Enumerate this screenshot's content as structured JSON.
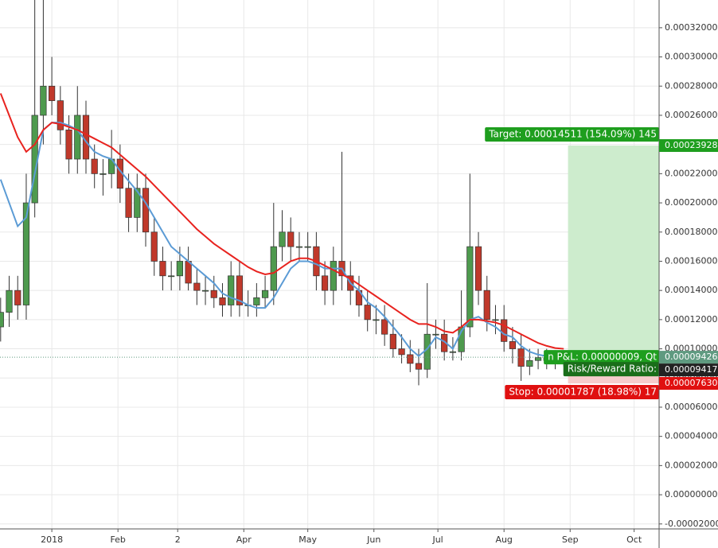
{
  "chart_data": {
    "type": "candlestick",
    "x": [
      -24,
      -20,
      -16,
      -12,
      -8,
      -4,
      0,
      4,
      8,
      12,
      16,
      20,
      24,
      28,
      32,
      36,
      40,
      44,
      48,
      52,
      56,
      60,
      64,
      68,
      72,
      76,
      80,
      84,
      88,
      92,
      96,
      100,
      104,
      108,
      112,
      116,
      120,
      124,
      128,
      132,
      136,
      140,
      144,
      148,
      152,
      156,
      160,
      164,
      168,
      172,
      176,
      180,
      184,
      188,
      192,
      196,
      200,
      204,
      208,
      212,
      216,
      220,
      224,
      228,
      232,
      236,
      240
    ],
    "open": [
      0.000115,
      0.000125,
      0.00014,
      0.00013,
      0.0002,
      0.00026,
      0.00028,
      0.00027,
      0.00025,
      0.00023,
      0.00026,
      0.00023,
      0.00022,
      0.00022,
      0.00023,
      0.00021,
      0.00019,
      0.00021,
      0.00018,
      0.00016,
      0.00015,
      0.00015,
      0.00016,
      0.000145,
      0.00014,
      0.00014,
      0.000135,
      0.00013,
      0.00015,
      0.00013,
      0.00013,
      0.000135,
      0.00014,
      0.00017,
      0.00018,
      0.00017,
      0.00017,
      0.00017,
      0.00015,
      0.00014,
      0.00016,
      0.00015,
      0.00014,
      0.00013,
      0.00012,
      0.00012,
      0.00011,
      0.0001,
      9.6e-05,
      9e-05,
      8.6e-05,
      0.00011,
      0.00011,
      9.8e-05,
      9.8e-05,
      0.000115,
      0.00017,
      0.00014,
      0.00012,
      0.00012,
      0.000105,
      0.0001,
      8.8e-05,
      9.2e-05,
      9.4e-05,
      9.2e-05,
      9.3e-05
    ],
    "high": [
      0.000135,
      0.00015,
      0.00015,
      0.00022,
      0.00034,
      0.00034,
      0.0003,
      0.00028,
      0.00026,
      0.00028,
      0.00027,
      0.00024,
      0.00023,
      0.00025,
      0.00024,
      0.00022,
      0.00022,
      0.00022,
      0.00019,
      0.00017,
      0.00016,
      0.00017,
      0.00017,
      0.000155,
      0.00015,
      0.00015,
      0.000145,
      0.00016,
      0.00016,
      0.00014,
      0.000145,
      0.00015,
      0.0002,
      0.000195,
      0.00019,
      0.00018,
      0.00018,
      0.00018,
      0.00016,
      0.00017,
      0.000235,
      0.00016,
      0.00015,
      0.00014,
      0.00013,
      0.00013,
      0.00012,
      0.00011,
      0.000106,
      0.0001,
      0.000145,
      0.00012,
      0.00012,
      0.000108,
      0.00014,
      0.00022,
      0.00018,
      0.00015,
      0.00013,
      0.00013,
      0.000115,
      0.00011,
      0.0001,
      0.0001,
      0.0001,
      9.9e-05,
      9.9e-05
    ],
    "low": [
      0.000105,
      0.000115,
      0.00012,
      0.00012,
      0.00019,
      0.00024,
      0.00026,
      0.00024,
      0.00022,
      0.00022,
      0.00022,
      0.00021,
      0.000205,
      0.00021,
      0.0002,
      0.00018,
      0.00018,
      0.00017,
      0.00015,
      0.00014,
      0.00014,
      0.00014,
      0.00014,
      0.00013,
      0.00013,
      0.000128,
      0.000122,
      0.000122,
      0.000122,
      0.000122,
      0.000122,
      0.000128,
      0.00013,
      0.00016,
      0.00016,
      0.00016,
      0.00016,
      0.00014,
      0.00013,
      0.00013,
      0.00014,
      0.00013,
      0.000122,
      0.000112,
      0.00011,
      0.000102,
      9.4e-05,
      9e-05,
      8.4e-05,
      7.5e-05,
      8e-05,
      0.0001,
      9.2e-05,
      9.2e-05,
      9.2e-05,
      0.000108,
      0.00013,
      0.000112,
      0.00011,
      9.8e-05,
      9e-05,
      7.8e-05,
      8.2e-05,
      8.6e-05,
      8.6e-05,
      8.6e-05,
      8.8e-05
    ],
    "close": [
      0.000125,
      0.00014,
      0.00013,
      0.0002,
      0.00026,
      0.00028,
      0.00027,
      0.00025,
      0.00023,
      0.00026,
      0.00023,
      0.00022,
      0.00022,
      0.00023,
      0.00021,
      0.00019,
      0.00021,
      0.00018,
      0.00016,
      0.00015,
      0.00015,
      0.00016,
      0.000145,
      0.00014,
      0.00014,
      0.000135,
      0.00013,
      0.00015,
      0.00013,
      0.00013,
      0.000135,
      0.00014,
      0.00017,
      0.00018,
      0.00017,
      0.00017,
      0.00017,
      0.00015,
      0.00014,
      0.00016,
      0.00015,
      0.00014,
      0.00013,
      0.00012,
      0.00012,
      0.00011,
      0.0001,
      9.6e-05,
      9e-05,
      8.6e-05,
      0.00011,
      0.00011,
      9.8e-05,
      9.8e-05,
      0.000115,
      0.00017,
      0.00014,
      0.00012,
      0.00012,
      0.000105,
      0.0001,
      8.8e-05,
      9.2e-05,
      9.4e-05,
      9.2e-05,
      9.3e-05,
      9.4e-05
    ],
    "up_color": "#4e9a4e",
    "down_color": "#c0392b",
    "moving_averages": [
      {
        "color": "#5b9bd5",
        "values": [
          0.000216,
          0.0002,
          0.000184,
          0.00019,
          0.00022,
          0.00025,
          0.000255,
          0.000255,
          0.000253,
          0.00025,
          0.000242,
          0.000235,
          0.000232,
          0.00023,
          0.000222,
          0.000215,
          0.000208,
          0.0002,
          0.00019,
          0.00018,
          0.00017,
          0.000165,
          0.00016,
          0.000155,
          0.00015,
          0.000145,
          0.000138,
          0.000135,
          0.000133,
          0.00013,
          0.000128,
          0.000128,
          0.000135,
          0.000145,
          0.000155,
          0.00016,
          0.00016,
          0.000158,
          0.000155,
          0.000155,
          0.000155,
          0.000145,
          0.00014,
          0.000132,
          0.000128,
          0.000122,
          0.000115,
          0.000108,
          0.0001,
          9.5e-05,
          0.0001,
          0.000108,
          0.000105,
          0.0001,
          0.000112,
          0.00012,
          0.000122,
          0.000118,
          0.000115,
          0.00011,
          0.000108,
          0.000102,
          9.8e-05,
          9.6e-05,
          9.5e-05,
          9.4e-05,
          null
        ]
      },
      {
        "color": "#e8231f",
        "values": [
          0.000275,
          0.00026,
          0.000245,
          0.000235,
          0.00024,
          0.00025,
          0.000255,
          0.000254,
          0.000252,
          0.00025,
          0.000247,
          0.000244,
          0.000241,
          0.000238,
          0.000233,
          0.000228,
          0.000223,
          0.000218,
          0.000212,
          0.000206,
          0.0002,
          0.000194,
          0.000188,
          0.000182,
          0.000177,
          0.000172,
          0.000168,
          0.000164,
          0.00016,
          0.000156,
          0.000153,
          0.000151,
          0.000152,
          0.000156,
          0.00016,
          0.000162,
          0.000162,
          0.00016,
          0.000157,
          0.000154,
          0.000151,
          0.000148,
          0.000144,
          0.00014,
          0.000136,
          0.000132,
          0.000128,
          0.000124,
          0.00012,
          0.000117,
          0.000117,
          0.000115,
          0.000112,
          0.000111,
          0.000115,
          0.00012,
          0.00012,
          0.000119,
          0.000118,
          0.000116,
          0.000113,
          0.00011,
          0.000107,
          0.000104,
          0.000102,
          0.0001005,
          0.0001
        ]
      }
    ],
    "xlim": [
      -24.3,
      284.7
    ],
    "ylim": [
      -2.34e-05,
      0.000339
    ],
    "xticks": [
      {
        "value": 0,
        "label": "2018"
      },
      {
        "value": 31,
        "label": "Feb"
      },
      {
        "value": 59,
        "label": "2"
      },
      {
        "value": 90,
        "label": "Apr"
      },
      {
        "value": 120,
        "label": "May"
      },
      {
        "value": 151,
        "label": "Jun"
      },
      {
        "value": 181,
        "label": "Jul"
      },
      {
        "value": 212,
        "label": "Aug"
      },
      {
        "value": 243,
        "label": "Sep"
      },
      {
        "value": 273,
        "label": "Oct"
      }
    ],
    "yticks": [
      {
        "value": -2e-05,
        "label": "-0.00002000"
      },
      {
        "value": 0,
        "label": "0.00000000"
      },
      {
        "value": 2e-05,
        "label": "0.00002000"
      },
      {
        "value": 4e-05,
        "label": "0.00004000"
      },
      {
        "value": 6e-05,
        "label": "0.00006000"
      },
      {
        "value": 8e-05,
        "label": "0.00008000"
      },
      {
        "value": 0.0001,
        "label": "0.00010000"
      },
      {
        "value": 0.00012,
        "label": "0.00012000"
      },
      {
        "value": 0.00014,
        "label": "0.00014000"
      },
      {
        "value": 0.00016,
        "label": "0.00016000"
      },
      {
        "value": 0.00018,
        "label": "0.00018000"
      },
      {
        "value": 0.0002,
        "label": "0.00020000"
      },
      {
        "value": 0.00022,
        "label": "0.00022000"
      },
      {
        "value": 0.00024,
        "label": "0.00024000"
      },
      {
        "value": 0.00026,
        "label": "0.00026000"
      },
      {
        "value": 0.00028,
        "label": "0.00028000"
      },
      {
        "value": 0.0003,
        "label": "0.00030000"
      },
      {
        "value": 0.00032,
        "label": "0.00032000"
      }
    ],
    "grid": true,
    "markers": [
      {
        "value": 0.00023928,
        "label": "0.00023928",
        "color": "#1e9e1e"
      },
      {
        "value": 9.426e-05,
        "label": "0.00009426",
        "color": "#5f9a80"
      },
      {
        "value": 9.417e-05,
        "label": "0.00009417",
        "color": "#222222"
      },
      {
        "value": 7.63e-05,
        "label": "0.00007630",
        "color": "#e01010"
      }
    ],
    "position": {
      "start": 242,
      "entry": 9.426e-05,
      "target": 0.00023928,
      "stop": 7.63e-05,
      "target_text": "Target: 0.00014511 (154.09%) 145",
      "stop_text": "Stop: 0.00001787 (18.98%) 17",
      "pnl_text": "n P&L: 0.00000009, Qt",
      "rr_text": "Risk/Reward Ratio: "
    }
  }
}
